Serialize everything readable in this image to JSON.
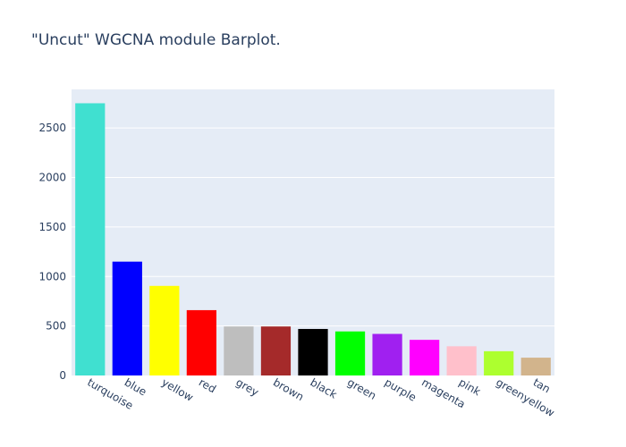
{
  "chart_data": {
    "type": "bar",
    "title": "\"Uncut\" WGCNA module Barplot.",
    "categories": [
      "turquoise",
      "blue",
      "yellow",
      "red",
      "grey",
      "brown",
      "black",
      "green",
      "purple",
      "magenta",
      "pink",
      "greenyellow",
      "tan"
    ],
    "values": [
      2750,
      1150,
      905,
      660,
      495,
      495,
      470,
      445,
      420,
      360,
      295,
      245,
      180
    ],
    "colors": [
      "#40e0d0",
      "#0000ff",
      "#ffff00",
      "#ff0000",
      "#bebebe",
      "#a52a2a",
      "#000000",
      "#00ff00",
      "#a020f0",
      "#ff00ff",
      "#ffc0cb",
      "#adff2f",
      "#d2b48c"
    ],
    "ylim": [
      0,
      2890
    ],
    "yticks": [
      0,
      500,
      1000,
      1500,
      2000,
      2500
    ],
    "grid": true,
    "plot_background": "#e5ecf6",
    "xlabel": "",
    "ylabel": ""
  }
}
